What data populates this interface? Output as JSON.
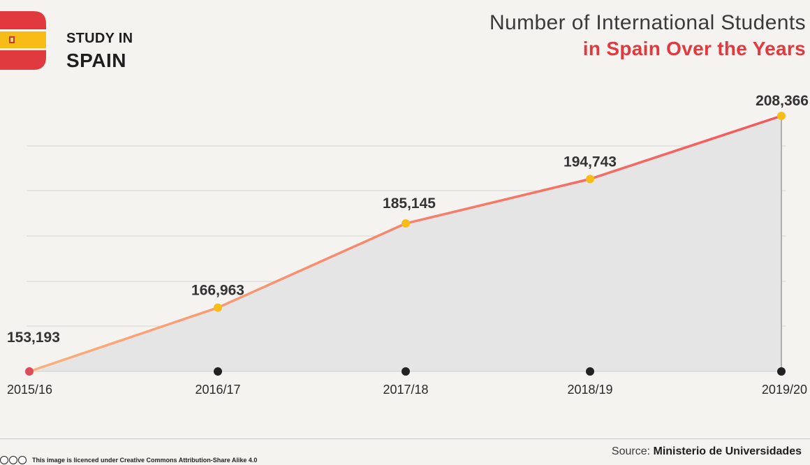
{
  "brand": {
    "line1": "STUDY IN",
    "line2": "SPAIN"
  },
  "title": {
    "line1": "Number of International Students",
    "line2": "in Spain Over the Years"
  },
  "chart_data": {
    "type": "area",
    "title": "Number of International Students in Spain Over the Years",
    "categories": [
      "2015/16",
      "2016/17",
      "2017/18",
      "2018/19",
      "2019/20"
    ],
    "series": [
      {
        "values": [
          153193,
          166963,
          185145,
          194743,
          208366
        ]
      }
    ],
    "data_labels": [
      "153,193",
      "166,963",
      "185,145",
      "194,743",
      "208,366"
    ],
    "ylim": [
      153193,
      208366
    ],
    "grid": true,
    "colors": {
      "line_start": "#fbb07a",
      "line_end": "#f2575b",
      "fill": "#e6e5e6",
      "point_first": "#e04b5a",
      "point_other": "#f7bd16",
      "axis_dot": "#222222",
      "grid": "#d6d6d6"
    }
  },
  "source": {
    "label": "Source:",
    "name": "Ministerio de Universidades"
  },
  "license": {
    "text": "This image is licenced under Creative Commons Attribution-Share Alike 4.0"
  },
  "colors": {
    "accent_red": "#e03a3e",
    "flag_yellow": "#f7bd16",
    "flag_red": "#e03a3e"
  }
}
